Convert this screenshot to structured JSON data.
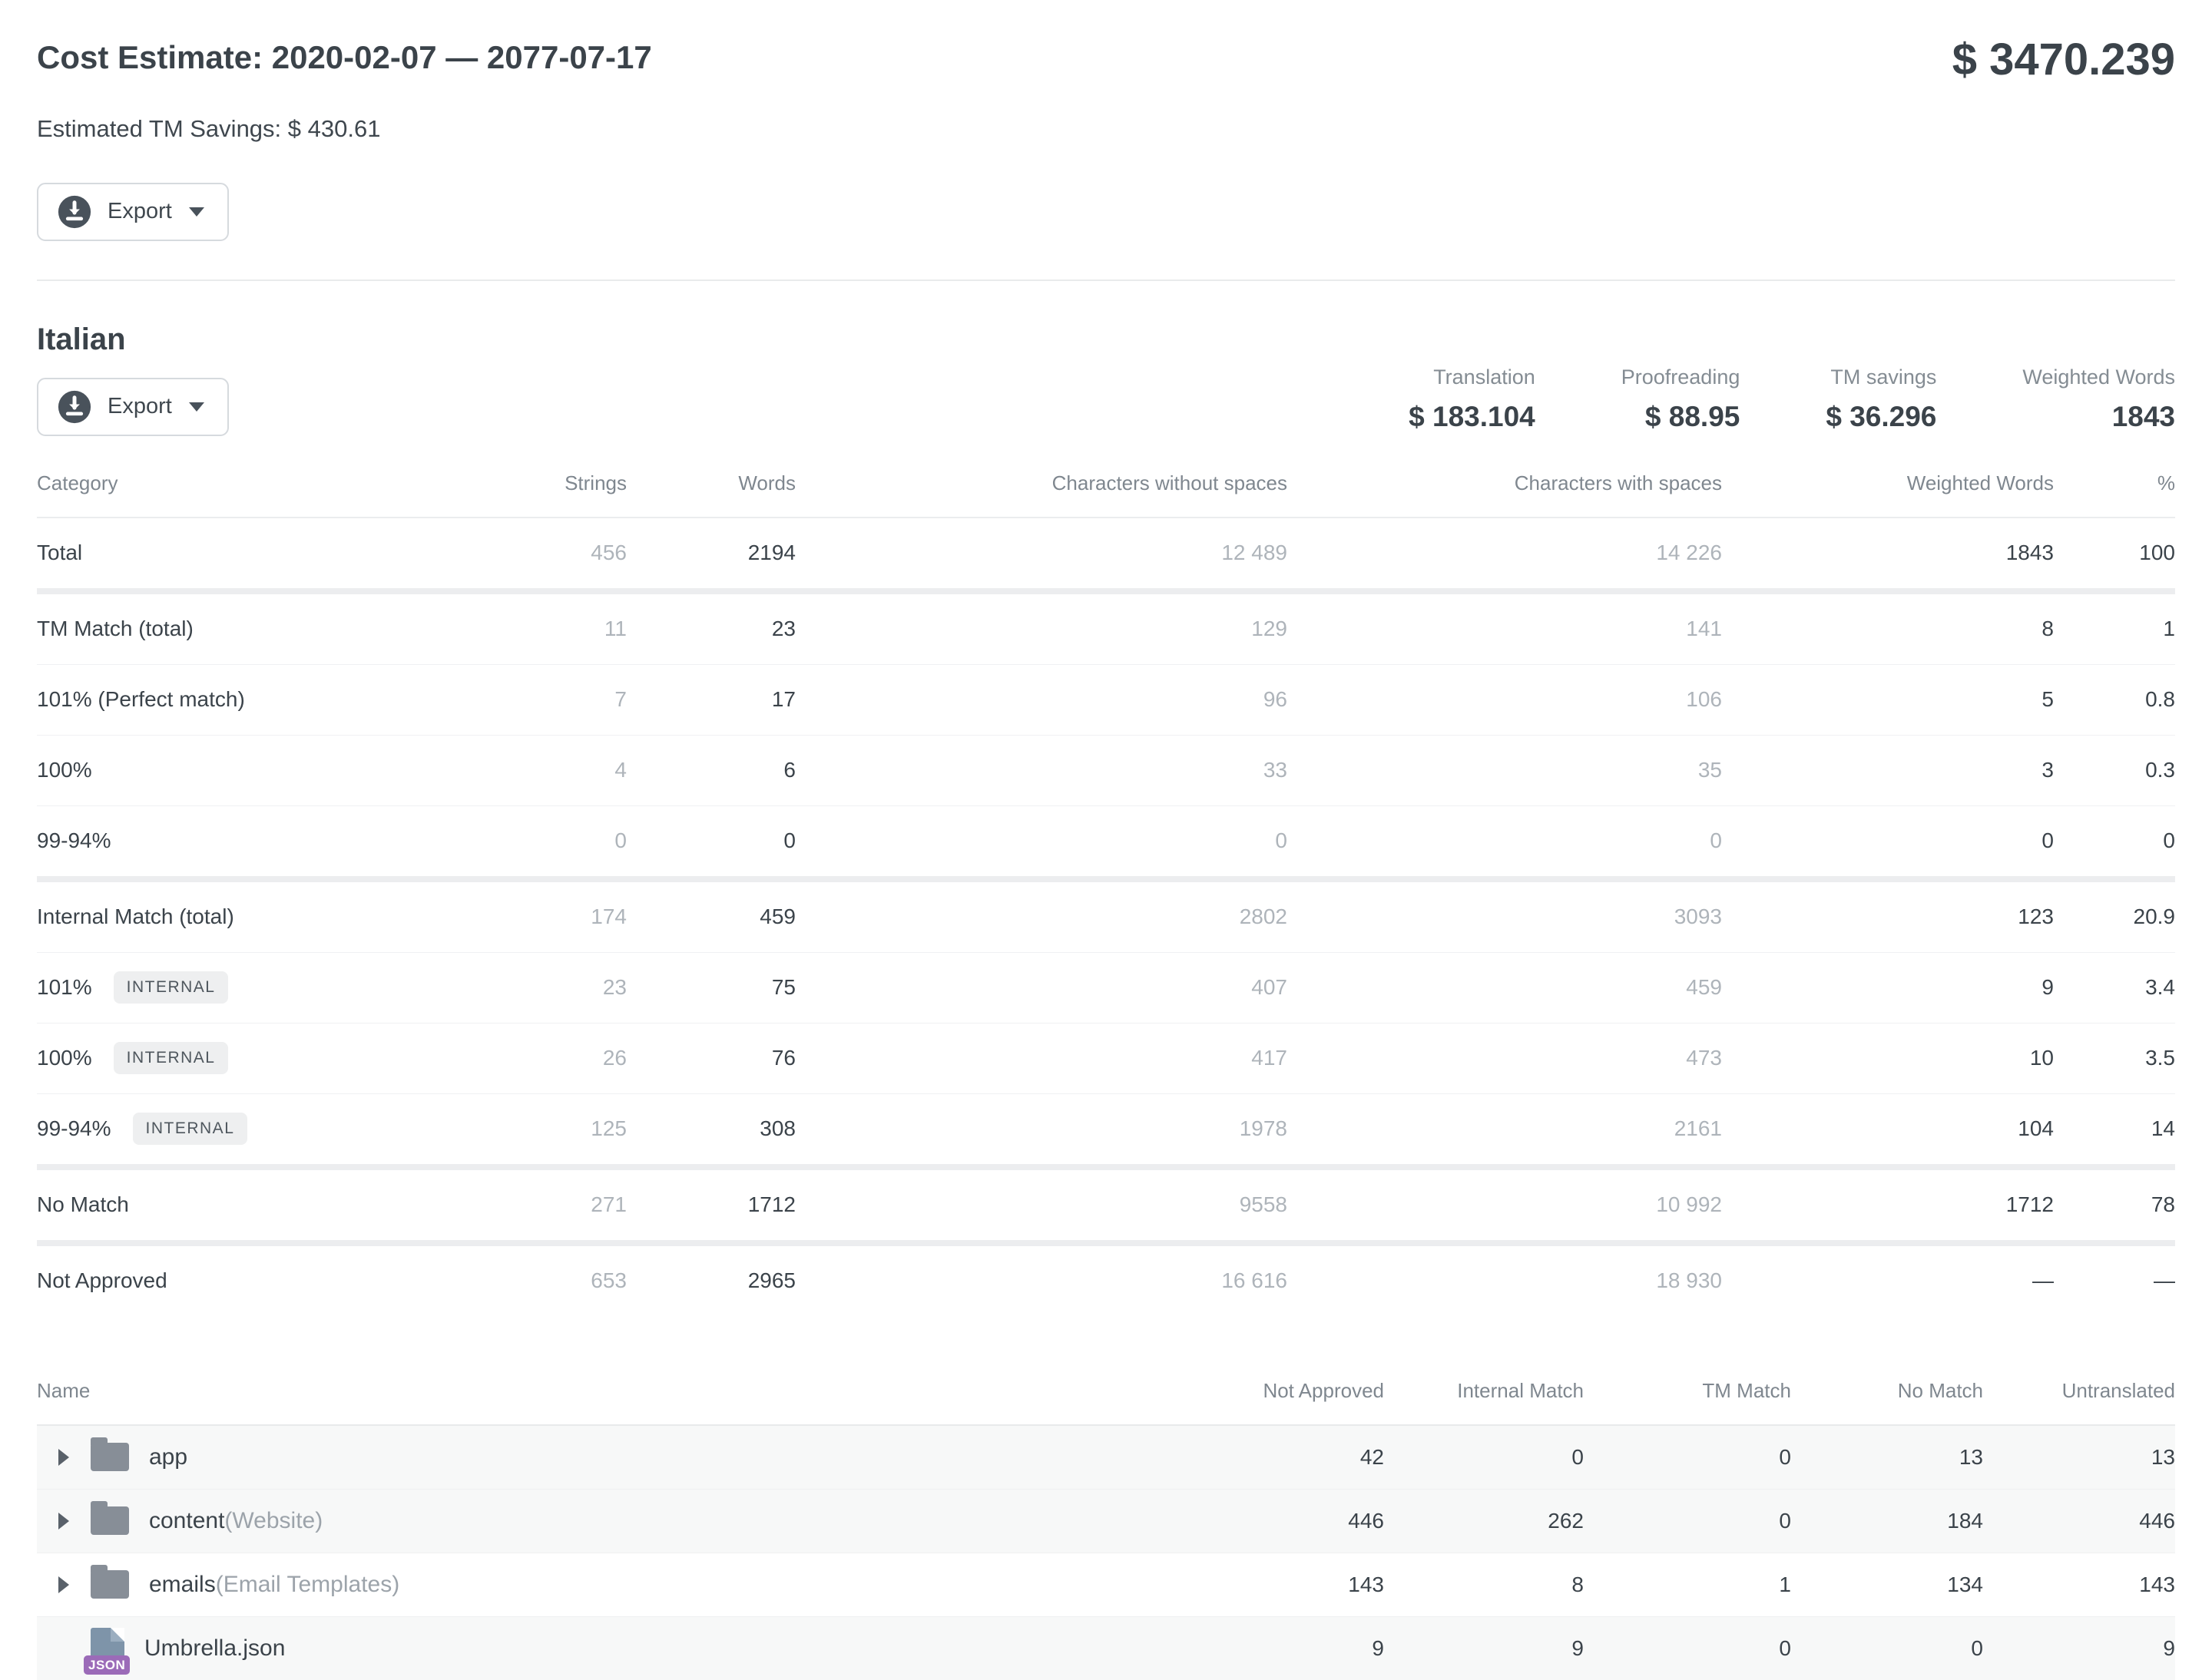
{
  "header": {
    "title": "Cost Estimate: 2020-02-07 — 2077-07-17",
    "total": "$ 3470.239",
    "tm_savings_line": "Estimated TM Savings: $ 430.61",
    "export_label": "Export"
  },
  "language_section": {
    "language": "Italian",
    "export_label": "Export",
    "stats": [
      {
        "label": "Translation",
        "value": "$ 183.104"
      },
      {
        "label": "Proofreading",
        "value": "$ 88.95"
      },
      {
        "label": "TM savings",
        "value": "$ 36.296"
      },
      {
        "label": "Weighted Words",
        "value": "1843"
      }
    ],
    "table": {
      "columns": [
        "Category",
        "Strings",
        "Words",
        "Characters without spaces",
        "Characters with spaces",
        "Weighted Words",
        "%"
      ],
      "rows": [
        {
          "category": "Total",
          "badge": "",
          "strings": "456",
          "words": "2194",
          "chars_without": "12 489",
          "chars_with": "14 226",
          "weighted": "1843",
          "percent": "100",
          "group_start": false
        },
        {
          "category": "TM Match (total)",
          "badge": "",
          "strings": "11",
          "words": "23",
          "chars_without": "129",
          "chars_with": "141",
          "weighted": "8",
          "percent": "1",
          "group_start": true
        },
        {
          "category": "101% (Perfect match)",
          "badge": "",
          "strings": "7",
          "words": "17",
          "chars_without": "96",
          "chars_with": "106",
          "weighted": "5",
          "percent": "0.8",
          "group_start": false
        },
        {
          "category": "100%",
          "badge": "",
          "strings": "4",
          "words": "6",
          "chars_without": "33",
          "chars_with": "35",
          "weighted": "3",
          "percent": "0.3",
          "group_start": false
        },
        {
          "category": "99-94%",
          "badge": "",
          "strings": "0",
          "words": "0",
          "chars_without": "0",
          "chars_with": "0",
          "weighted": "0",
          "percent": "0",
          "group_start": false
        },
        {
          "category": "Internal Match (total)",
          "badge": "",
          "strings": "174",
          "words": "459",
          "chars_without": "2802",
          "chars_with": "3093",
          "weighted": "123",
          "percent": "20.9",
          "group_start": true
        },
        {
          "category": "101%",
          "badge": "INTERNAL",
          "strings": "23",
          "words": "75",
          "chars_without": "407",
          "chars_with": "459",
          "weighted": "9",
          "percent": "3.4",
          "group_start": false
        },
        {
          "category": "100%",
          "badge": "INTERNAL",
          "strings": "26",
          "words": "76",
          "chars_without": "417",
          "chars_with": "473",
          "weighted": "10",
          "percent": "3.5",
          "group_start": false
        },
        {
          "category": "99-94%",
          "badge": "INTERNAL",
          "strings": "125",
          "words": "308",
          "chars_without": "1978",
          "chars_with": "2161",
          "weighted": "104",
          "percent": "14",
          "group_start": false
        },
        {
          "category": "No Match",
          "badge": "",
          "strings": "271",
          "words": "1712",
          "chars_without": "9558",
          "chars_with": "10 992",
          "weighted": "1712",
          "percent": "78",
          "group_start": true
        },
        {
          "category": "Not Approved",
          "badge": "",
          "strings": "653",
          "words": "2965",
          "chars_without": "16 616",
          "chars_with": "18 930",
          "weighted": "—",
          "percent": "—",
          "group_start": true
        }
      ]
    }
  },
  "files_table": {
    "columns": [
      "Name",
      "Not Approved",
      "Internal Match",
      "TM Match",
      "No Match",
      "Untranslated"
    ],
    "file_badge": "JSON",
    "rows": [
      {
        "name": "app",
        "annotation": "",
        "type": "folder",
        "expandable": true,
        "striped": true,
        "not_approved": "42",
        "internal_match": "0",
        "tm_match": "0",
        "no_match": "13",
        "untranslated": "13"
      },
      {
        "name": "content",
        "annotation": "(Website)",
        "type": "folder",
        "expandable": true,
        "striped": true,
        "not_approved": "446",
        "internal_match": "262",
        "tm_match": "0",
        "no_match": "184",
        "untranslated": "446"
      },
      {
        "name": "emails",
        "annotation": "(Email Templates)",
        "type": "folder",
        "expandable": true,
        "striped": false,
        "not_approved": "143",
        "internal_match": "8",
        "tm_match": "1",
        "no_match": "134",
        "untranslated": "143"
      },
      {
        "name": "Umbrella.json",
        "annotation": "",
        "type": "json-file",
        "expandable": false,
        "striped": true,
        "not_approved": "9",
        "internal_match": "9",
        "tm_match": "0",
        "no_match": "0",
        "untranslated": "9"
      }
    ]
  },
  "colors": {
    "text_dark": "#3B434A",
    "text_gray_value": "#AEB4BA",
    "text_label_gray": "#7F878F",
    "divider": "#E9EBEC",
    "stripe_bg": "#F7F8F8",
    "badge_bg": "#EEEFF0",
    "folder_icon": "#878E97",
    "json_badge": "#9B6BB8",
    "icon_circle": "#49525B"
  }
}
